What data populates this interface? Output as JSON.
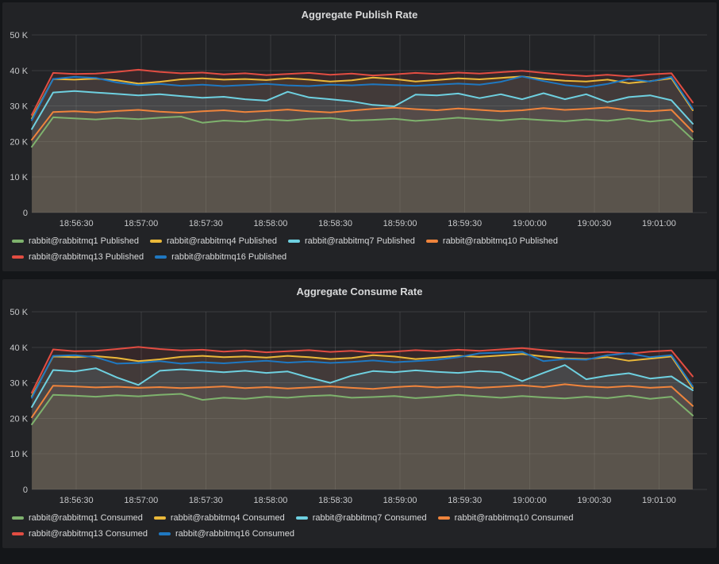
{
  "app": "grafana-dashboard",
  "theme": {
    "page_bg": "#141619",
    "panel_bg": "#222326",
    "text_color": "#d8d9da",
    "tick_color": "#c7c8ca",
    "grid_color": "rgba(255,255,255,0.11)"
  },
  "chart_data": [
    {
      "type": "line",
      "title": "Aggregate Publish Rate",
      "xlabel": "",
      "ylabel": "",
      "ylim_k": [
        0,
        50
      ],
      "grid": true,
      "legend_position": "bottom-left",
      "y_ticks": [
        "0",
        "10 K",
        "20 K",
        "30 K",
        "40 K",
        "50 K"
      ],
      "x_ticks": [
        "18:56:30",
        "18:57:00",
        "18:57:30",
        "18:58:00",
        "18:58:30",
        "18:59:00",
        "18:59:30",
        "19:00:00",
        "19:00:30",
        "19:01:00"
      ],
      "series": [
        {
          "name": "rabbit@rabbitmq1 Published",
          "color": "#7EB26D",
          "values_k": [
            18.5,
            26.8,
            26.5,
            26.2,
            26.6,
            26.3,
            26.7,
            27.0,
            25.3,
            25.9,
            25.6,
            26.2,
            25.9,
            26.4,
            26.6,
            25.9,
            26.1,
            26.4,
            25.8,
            26.2,
            26.7,
            26.3,
            25.9,
            26.4,
            26.0,
            25.7,
            26.2,
            25.8,
            26.5,
            25.6,
            26.2,
            20.6
          ]
        },
        {
          "name": "rabbit@rabbitmq4 Published",
          "color": "#EAB839",
          "values_k": [
            26.5,
            37.6,
            37.4,
            37.7,
            37.2,
            36.3,
            36.8,
            37.5,
            37.8,
            37.4,
            37.6,
            37.3,
            37.8,
            37.4,
            36.9,
            37.2,
            38.0,
            37.6,
            36.9,
            37.3,
            37.8,
            37.5,
            37.9,
            38.3,
            37.6,
            37.1,
            36.9,
            37.4,
            36.4,
            37.0,
            37.8,
            28.8
          ]
        },
        {
          "name": "rabbit@rabbitmq7 Published",
          "color": "#6ED0E0",
          "values_k": [
            23.5,
            33.8,
            34.2,
            33.8,
            33.4,
            33.0,
            33.3,
            32.8,
            32.3,
            32.6,
            31.9,
            31.5,
            34.0,
            32.4,
            31.9,
            31.3,
            30.3,
            29.9,
            33.2,
            33.0,
            33.5,
            32.2,
            33.3,
            31.9,
            33.6,
            31.9,
            33.3,
            31.1,
            32.5,
            33.0,
            31.6,
            25.0
          ]
        },
        {
          "name": "rabbit@rabbitmq10 Published",
          "color": "#EF843C",
          "values_k": [
            20.5,
            28.3,
            28.5,
            28.2,
            28.6,
            28.9,
            28.4,
            28.1,
            28.5,
            28.8,
            28.3,
            28.6,
            29.0,
            28.5,
            28.2,
            28.7,
            29.2,
            29.5,
            29.1,
            28.8,
            29.3,
            28.9,
            28.5,
            28.8,
            29.4,
            28.9,
            29.2,
            29.6,
            28.8,
            28.5,
            28.9,
            22.8
          ]
        },
        {
          "name": "rabbit@rabbitmq13 Published",
          "color": "#E24D42",
          "values_k": [
            27.5,
            39.3,
            39.0,
            39.1,
            39.6,
            40.2,
            39.6,
            39.2,
            39.4,
            38.9,
            39.2,
            38.7,
            39.0,
            39.3,
            38.8,
            39.1,
            38.6,
            38.9,
            39.3,
            39.0,
            39.4,
            39.1,
            39.5,
            39.9,
            39.3,
            38.8,
            38.4,
            38.8,
            38.3,
            38.9,
            39.2,
            31.0
          ]
        },
        {
          "name": "rabbit@rabbitmq16 Published",
          "color": "#1F78C1",
          "values_k": [
            26.0,
            37.6,
            38.2,
            37.9,
            36.6,
            35.9,
            36.2,
            35.7,
            36.0,
            35.6,
            35.9,
            36.2,
            35.8,
            35.6,
            36.0,
            35.8,
            36.1,
            35.9,
            35.7,
            36.0,
            36.3,
            36.0,
            36.8,
            38.3,
            37.0,
            35.9,
            35.3,
            36.2,
            37.6,
            36.9,
            38.2,
            29.2
          ]
        }
      ]
    },
    {
      "type": "line",
      "title": "Aggregate Consume Rate",
      "xlabel": "",
      "ylabel": "",
      "ylim_k": [
        0,
        50
      ],
      "grid": true,
      "legend_position": "bottom-left",
      "y_ticks": [
        "0",
        "10 K",
        "20 K",
        "30 K",
        "40 K",
        "50 K"
      ],
      "x_ticks": [
        "18:56:30",
        "18:57:00",
        "18:57:30",
        "18:58:00",
        "18:58:30",
        "18:59:00",
        "18:59:30",
        "19:00:00",
        "19:00:30",
        "19:01:00"
      ],
      "series": [
        {
          "name": "rabbit@rabbitmq1 Consumed",
          "color": "#7EB26D",
          "values_k": [
            18.3,
            26.6,
            26.4,
            26.1,
            26.5,
            26.2,
            26.6,
            26.9,
            25.2,
            25.8,
            25.5,
            26.1,
            25.8,
            26.3,
            26.5,
            25.8,
            26.0,
            26.3,
            25.7,
            26.1,
            26.6,
            26.2,
            25.8,
            26.3,
            25.9,
            25.6,
            26.1,
            25.7,
            26.4,
            25.5,
            26.1,
            20.8
          ]
        },
        {
          "name": "rabbit@rabbitmq4 Consumed",
          "color": "#EAB839",
          "values_k": [
            26.2,
            37.4,
            37.2,
            37.5,
            37.0,
            36.1,
            36.6,
            37.3,
            37.6,
            37.2,
            37.4,
            37.1,
            37.6,
            37.2,
            36.7,
            37.0,
            37.8,
            37.4,
            36.7,
            37.1,
            37.6,
            37.3,
            37.7,
            38.1,
            37.4,
            36.9,
            36.7,
            37.2,
            36.2,
            36.8,
            37.4,
            28.5
          ]
        },
        {
          "name": "rabbit@rabbitmq7 Consumed",
          "color": "#6ED0E0",
          "values_k": [
            23.2,
            33.6,
            33.2,
            34.1,
            31.5,
            29.4,
            33.4,
            33.8,
            33.4,
            33.0,
            33.4,
            32.8,
            33.2,
            31.5,
            30.0,
            32.0,
            33.3,
            33.0,
            33.5,
            33.1,
            32.8,
            33.3,
            33.0,
            30.5,
            32.8,
            35.0,
            31.0,
            32.0,
            32.7,
            31.2,
            31.8,
            27.9
          ]
        },
        {
          "name": "rabbit@rabbitmq10 Consumed",
          "color": "#EF843C",
          "values_k": [
            20.3,
            29.2,
            29.0,
            28.7,
            28.9,
            28.6,
            28.8,
            28.5,
            28.7,
            29.0,
            28.5,
            28.8,
            28.4,
            28.7,
            29.0,
            28.6,
            28.3,
            28.8,
            29.1,
            28.7,
            29.0,
            28.6,
            28.9,
            29.3,
            28.8,
            29.6,
            29.0,
            28.7,
            29.1,
            28.6,
            28.9,
            23.5
          ]
        },
        {
          "name": "rabbit@rabbitmq13 Consumed",
          "color": "#E24D42",
          "values_k": [
            27.2,
            39.4,
            38.9,
            39.0,
            39.5,
            40.1,
            39.5,
            39.1,
            39.3,
            38.8,
            39.1,
            38.6,
            38.9,
            39.2,
            38.7,
            39.0,
            38.5,
            38.8,
            39.2,
            38.9,
            39.3,
            39.0,
            39.4,
            39.8,
            39.2,
            38.7,
            38.3,
            38.7,
            38.2,
            38.8,
            39.1,
            31.8
          ]
        },
        {
          "name": "rabbit@rabbitmq16 Consumed",
          "color": "#1F78C1",
          "values_k": [
            25.8,
            37.6,
            37.8,
            37.2,
            35.4,
            35.6,
            36.1,
            35.4,
            35.8,
            35.5,
            35.9,
            36.2,
            35.7,
            36.0,
            35.6,
            35.9,
            36.3,
            35.8,
            36.1,
            36.5,
            37.2,
            38.3,
            38.5,
            38.7,
            36.1,
            36.7,
            36.5,
            37.8,
            38.3,
            37.2,
            37.8,
            29.0
          ]
        }
      ]
    }
  ]
}
